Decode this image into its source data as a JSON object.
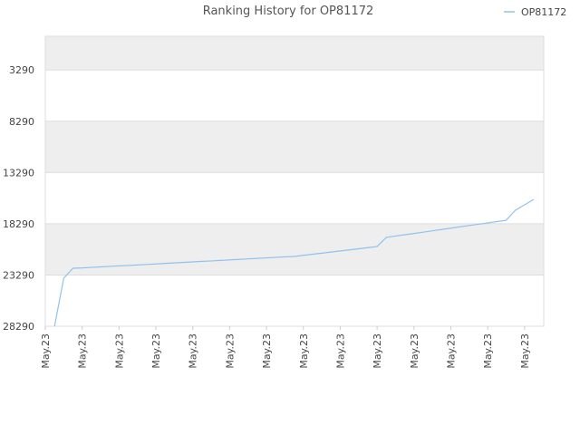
{
  "chart_data": {
    "type": "line",
    "title": "Ranking History for OP81172",
    "categories": [
      "May.23",
      null,
      null,
      null,
      "May.23",
      null,
      null,
      null,
      "May.23",
      null,
      null,
      null,
      "May.23",
      null,
      null,
      null,
      "May.23",
      null,
      null,
      null,
      "May.23",
      null,
      null,
      null,
      "May.23",
      null,
      null,
      null,
      "May.23",
      null,
      null,
      null,
      "May.23",
      null,
      null,
      null,
      "May.23",
      null,
      null,
      null,
      "May.23",
      null,
      null,
      null,
      "May.23",
      null,
      null,
      null,
      "May.23",
      null,
      null,
      null,
      "May.23",
      null,
      null
    ],
    "series": [
      {
        "name": "OP81172",
        "color": "#90c2ee",
        "values": [
          null,
          28290,
          23600,
          22630,
          22600,
          22550,
          22500,
          22450,
          22400,
          22360,
          22310,
          22260,
          22210,
          22160,
          22110,
          22060,
          22010,
          21960,
          21920,
          21870,
          21820,
          21770,
          21720,
          21670,
          21620,
          21570,
          21520,
          21480,
          21370,
          21260,
          21160,
          21050,
          20940,
          20840,
          20730,
          20620,
          20520,
          19620,
          19490,
          19360,
          19240,
          19110,
          18980,
          18850,
          18720,
          18590,
          18460,
          18340,
          18210,
          18080,
          17950,
          16970,
          16440,
          15910,
          null
        ]
      }
    ],
    "ylim": [
      28290,
      0
    ],
    "yticks": [
      3290,
      8290,
      13290,
      18290,
      23290,
      28290
    ],
    "grid": true,
    "legend": "top-right"
  }
}
